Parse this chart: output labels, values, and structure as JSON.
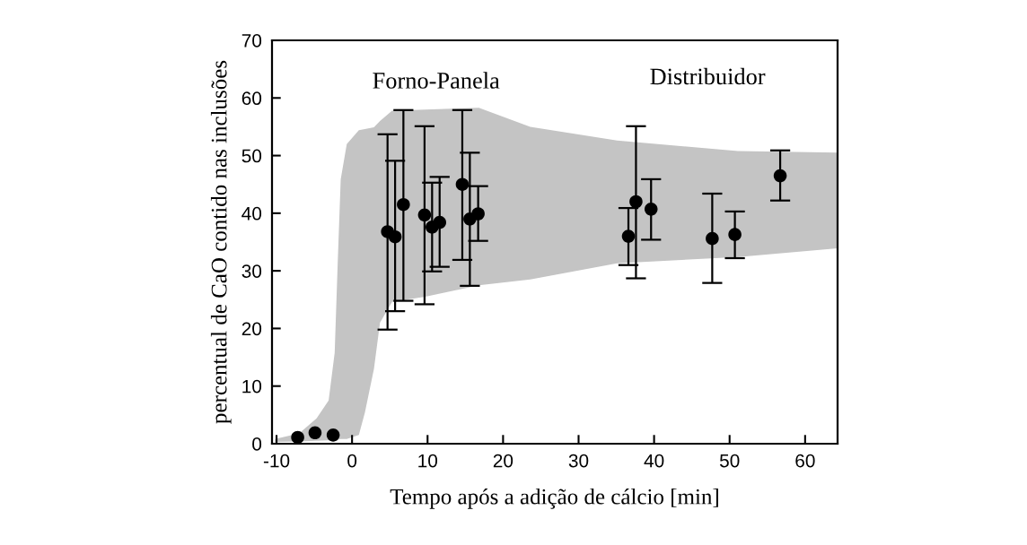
{
  "chart_data": {
    "type": "scatter",
    "xlabel": "Tempo após a adição de cálcio [min]",
    "ylabel": "percentual de CaO contido nas inclusões",
    "xlim": [
      -10.6,
      64.3
    ],
    "xticks": [
      -10,
      0,
      10,
      20,
      30,
      40,
      50,
      60
    ],
    "ylim": [
      0,
      70
    ],
    "yticks": [
      0,
      10,
      20,
      30,
      40,
      50,
      60,
      70
    ],
    "grid": false,
    "marker": "circle",
    "annotations": [
      "Forno-Panela",
      "Distribuidor"
    ],
    "series": [
      {
        "type": "area",
        "color": "#c4c4c4",
        "marker": "none",
        "x": [
          -10.2,
          -7,
          -4.7,
          -3.1,
          -2.3,
          -1.9,
          -1.5,
          -0.7,
          0.9,
          1.7,
          2.9,
          3.7,
          5.3,
          9.7,
          16.8,
          23.6,
          35.1,
          51.1,
          64.3
        ],
        "values": [
          0.8,
          1.8,
          4.4,
          7.5,
          15.8,
          31.3,
          45.9,
          52,
          54.4,
          54.6,
          54.9,
          56,
          57.8,
          58,
          58.3,
          55,
          52.6,
          50.8,
          50.5
        ]
      },
      {
        "type": "area",
        "color": "#ffffff",
        "marker": "none",
        "x": [
          -10.2,
          -7,
          -4.7,
          -3.1,
          -2.3,
          -1.9,
          -1.5,
          -0.7,
          0.9,
          1.7,
          2.9,
          3.7,
          5.3,
          9.7,
          16.8,
          23.6,
          35.1,
          51.1,
          64.3
        ],
        "values": [
          0.3,
          0.4,
          0.5,
          0.6,
          0.7,
          0.7,
          0.8,
          0.8,
          1.5,
          5.4,
          13,
          21,
          24.6,
          25.5,
          27.5,
          28.5,
          31.3,
          32.4,
          33.9
        ]
      },
      {
        "color": "#000000",
        "x": [
          -7.2,
          -4.9,
          -2.5,
          4.7,
          5.7,
          6.8,
          9.6,
          10.6,
          11.6,
          14.6,
          15.6,
          16.7,
          36.6,
          37.6,
          39.6,
          47.7,
          50.7,
          56.7
        ],
        "values": [
          1.1,
          1.9,
          1.5,
          36.8,
          35.9,
          41.5,
          39.7,
          37.6,
          38.4,
          45.0,
          39.0,
          39.9,
          36.0,
          42.0,
          40.7,
          35.6,
          36.3,
          46.5
        ],
        "errors": [
          null,
          null,
          null,
          [
            19.8,
            53.7
          ],
          [
            23.0,
            49.1
          ],
          [
            24.8,
            57.9
          ],
          [
            24.2,
            55.1
          ],
          [
            29.9,
            45.3
          ],
          [
            30.7,
            46.3
          ],
          [
            31.9,
            57.9
          ],
          [
            27.4,
            50.5
          ],
          [
            35.2,
            44.7
          ],
          [
            31.0,
            40.9
          ],
          [
            28.7,
            55.1
          ],
          [
            35.4,
            45.9
          ],
          [
            27.9,
            43.4
          ],
          [
            32.2,
            40.3
          ],
          [
            42.2,
            50.9
          ]
        ]
      }
    ]
  }
}
